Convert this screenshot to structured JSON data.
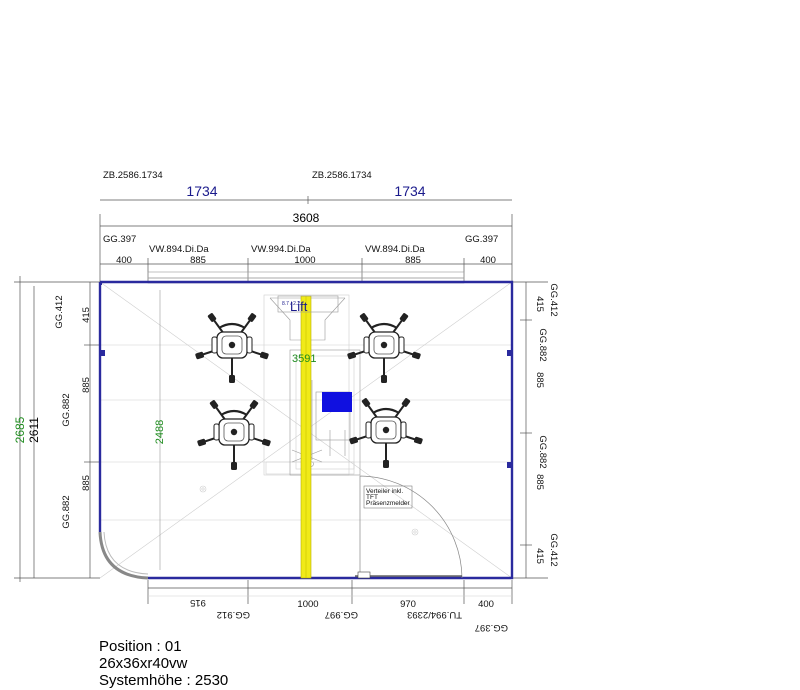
{
  "top": {
    "zb_left": "ZB.2586.1734",
    "zb_right": "ZB.2586.1734",
    "width_left": "1734",
    "width_right": "1734",
    "total_width": "3608",
    "gg_left": "GG.397",
    "gg_right": "GG.397",
    "vw_left": "VW.894.Di.Da",
    "vw_center": "VW.994.Di.Da",
    "vw_right": "VW.894.Di.Da",
    "seg": [
      "400",
      "885",
      "1000",
      "885",
      "400"
    ]
  },
  "left": {
    "outer_green": "2685",
    "outer_black": "2611",
    "gg_top": "GG.412",
    "gg_mid": "GG.882",
    "gg_bottom": "GG.882",
    "seg": [
      "415",
      "885",
      "885"
    ]
  },
  "right": {
    "gg": [
      "GG.412",
      "GG.882",
      "GG.882",
      "GG.412"
    ],
    "seg": [
      "415",
      "885",
      "885",
      "415"
    ]
  },
  "inner": {
    "depth": "2488",
    "length": "3591",
    "lift": "Lift",
    "lift_small": "8.7 / 2.2",
    "note_lines": [
      "Verteiler inkl.",
      "TFT",
      "Präsenzmelder"
    ]
  },
  "bottom": {
    "seg": [
      "915",
      "1000",
      "970",
      "400"
    ],
    "gg_912": "GG.912",
    "gg_997": "GG.997",
    "tu": "TU.994/2393",
    "gg_397": "GG.397"
  },
  "caption": {
    "position": "Position : 01",
    "size": "26x36xr40vw",
    "height": "Systemhöhe : 2530"
  },
  "colors": {
    "wall_blue": "#2a2a9e",
    "dim_blue": "#1a1a8c",
    "dim_green": "#1e8c1e",
    "lift_yellow": "#f0ea18",
    "screen_blue": "#1010e0"
  }
}
